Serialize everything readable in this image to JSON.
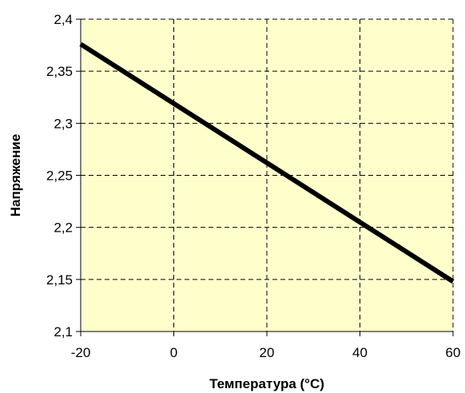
{
  "chart_data": {
    "type": "line",
    "xlabel": "Температура (°C)",
    "ylabel": "Напряжение",
    "xlim": [
      -20,
      60
    ],
    "ylim": [
      2.1,
      2.4
    ],
    "x_ticks": [
      -20,
      0,
      20,
      40,
      60
    ],
    "x_tick_labels": [
      "-20",
      "0",
      "20",
      "40",
      "60"
    ],
    "y_ticks": [
      2.1,
      2.15,
      2.2,
      2.25,
      2.3,
      2.35,
      2.4
    ],
    "y_tick_labels": [
      "2,1",
      "2,15",
      "2,2",
      "2,25",
      "2,3",
      "2,35",
      "2,4"
    ],
    "grid": true,
    "legend": "none",
    "series": [
      {
        "x": [
          -20,
          60
        ],
        "y": [
          2.376,
          2.148
        ],
        "color": "#000000"
      }
    ],
    "colors": {
      "plot_background": "#ffffcc",
      "grid": "#000000",
      "line": "#000000"
    }
  }
}
